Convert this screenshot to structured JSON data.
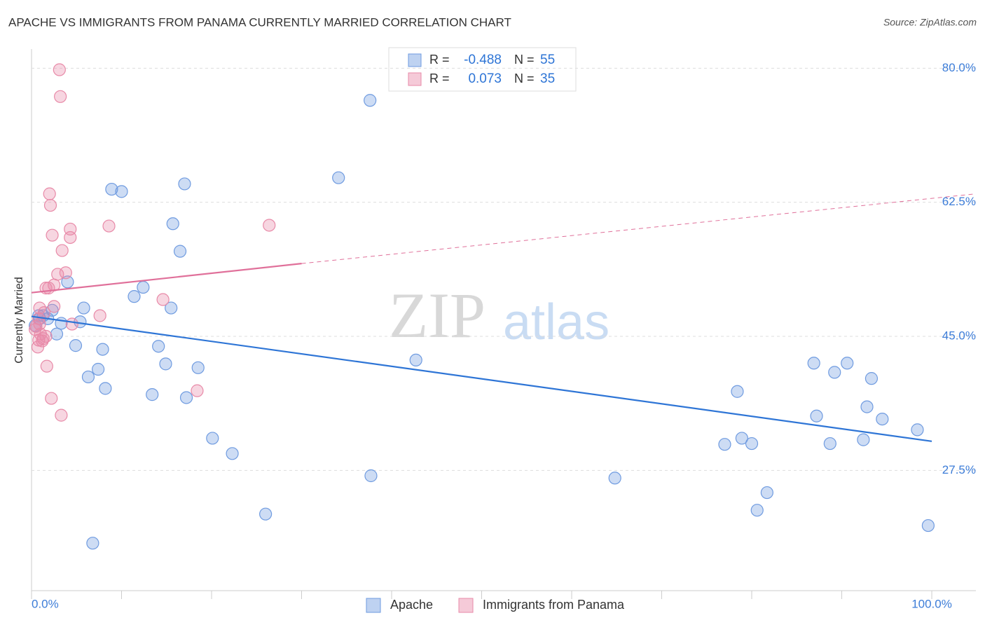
{
  "chart_data": {
    "type": "scatter",
    "title": "APACHE VS IMMIGRANTS FROM PANAMA CURRENTLY MARRIED CORRELATION CHART",
    "source": "Source: ZipAtlas.com",
    "ylabel": "Currently Married",
    "watermark": [
      "ZIP",
      "atlas"
    ],
    "legend_labels": {
      "r": "R =",
      "n": "N ="
    },
    "xlim": [
      0,
      104.9
    ],
    "ylim": [
      11.8,
      82.5
    ],
    "xticks": [
      {
        "value": 0,
        "label": "0.0%"
      },
      {
        "value": 100,
        "label": "100.0%"
      }
    ],
    "yticks": [
      {
        "value": 27.5,
        "label": "27.5%"
      },
      {
        "value": 45,
        "label": "45.0%"
      },
      {
        "value": 62.5,
        "label": "62.5%"
      },
      {
        "value": 80,
        "label": "80.0%"
      }
    ],
    "grid": true,
    "series": [
      {
        "name": "Apache",
        "color": "#6f9be0",
        "line_color": "#2e75d6",
        "r": -0.488,
        "n": 55,
        "x": [
          37.6,
          34.1,
          17.0,
          8.9,
          10.0,
          15.7,
          16.5,
          4.0,
          12.4,
          11.4,
          5.8,
          15.5,
          2.3,
          0.8,
          1.8,
          3.3,
          5.4,
          2.8,
          4.9,
          7.9,
          14.1,
          14.9,
          42.7,
          7.4,
          18.5,
          6.3,
          8.2,
          13.4,
          17.2,
          20.1,
          22.3,
          37.7,
          26.0,
          6.8,
          64.8,
          78.4,
          86.9,
          89.2,
          90.6,
          93.3,
          92.8,
          87.2,
          94.5,
          98.4,
          77.0,
          78.9,
          80.0,
          88.7,
          92.4,
          81.7,
          80.6,
          99.6,
          0.4,
          1.3,
          0.9
        ],
        "values": [
          75.8,
          65.7,
          64.9,
          64.2,
          63.9,
          59.7,
          56.1,
          52.1,
          51.4,
          50.2,
          48.7,
          48.7,
          48.4,
          47.7,
          47.3,
          46.7,
          46.9,
          45.3,
          43.8,
          43.3,
          43.7,
          41.4,
          41.9,
          40.7,
          40.9,
          39.7,
          38.2,
          37.4,
          37.0,
          31.7,
          29.7,
          26.8,
          21.8,
          18.0,
          26.5,
          37.8,
          41.5,
          40.3,
          41.5,
          39.5,
          35.8,
          34.6,
          34.2,
          32.8,
          30.9,
          31.7,
          31.0,
          31.0,
          31.5,
          24.6,
          22.3,
          20.3,
          46.4,
          47.7,
          47.3
        ],
        "trend_x": [
          0,
          100
        ],
        "trend_y": [
          47.6,
          31.3
        ]
      },
      {
        "name": "Immigrants from Panama",
        "color": "#e88aa8",
        "line_color": "#e0709a",
        "r": 0.073,
        "n": 35,
        "x": [
          3.1,
          3.2,
          2.0,
          2.1,
          8.6,
          26.4,
          4.3,
          2.3,
          4.3,
          3.4,
          2.9,
          3.8,
          2.5,
          1.6,
          1.9,
          14.6,
          2.5,
          0.9,
          1.4,
          7.6,
          0.8,
          4.5,
          0.5,
          1.0,
          1.3,
          0.8,
          1.2,
          0.7,
          1.7,
          18.4,
          2.2,
          3.3,
          0.4,
          1.6,
          0.9
        ],
        "values": [
          79.8,
          76.3,
          63.6,
          62.1,
          59.4,
          59.5,
          59.0,
          58.2,
          57.9,
          56.2,
          53.1,
          53.3,
          51.7,
          51.3,
          51.3,
          49.8,
          48.9,
          48.7,
          48.1,
          47.7,
          47.3,
          46.6,
          46.3,
          45.3,
          44.7,
          44.5,
          44.4,
          43.6,
          41.1,
          37.9,
          36.9,
          34.7,
          45.9,
          45.0,
          46.6
        ],
        "trend_x": [
          0,
          30,
          104.9
        ],
        "trend_y": [
          50.7,
          54.5,
          63.6
        ]
      }
    ]
  }
}
